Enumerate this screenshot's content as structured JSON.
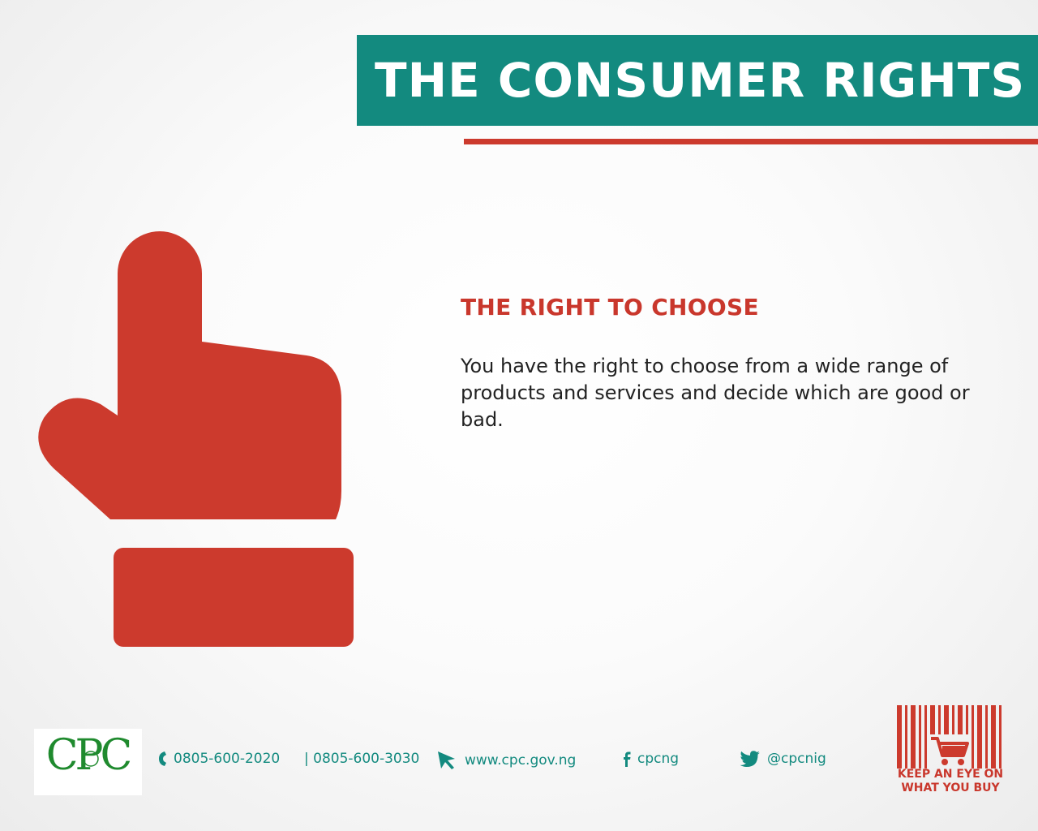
{
  "header": {
    "title": "THE CONSUMER RIGHTS"
  },
  "content": {
    "heading": "THE RIGHT TO CHOOSE",
    "body": "You have the right to choose from a wide range of products and services and decide which are good or bad."
  },
  "footer": {
    "logo_text": "CPC",
    "phone1": "0805-600-2020",
    "phone2": "| 0805-600-3030",
    "website": "www.cpc.gov.ng",
    "facebook": "cpcng",
    "twitter": "@cpcnig",
    "slogan_line1": "KEEP AN EYE ON",
    "slogan_line2": "WHAT YOU BUY"
  },
  "colors": {
    "teal": "#138a7f",
    "red": "#cc3a2d"
  },
  "icons": [
    "pointing-hand-icon",
    "phone-icon",
    "cursor-icon",
    "facebook-icon",
    "twitter-icon",
    "shopping-cart-icon"
  ]
}
